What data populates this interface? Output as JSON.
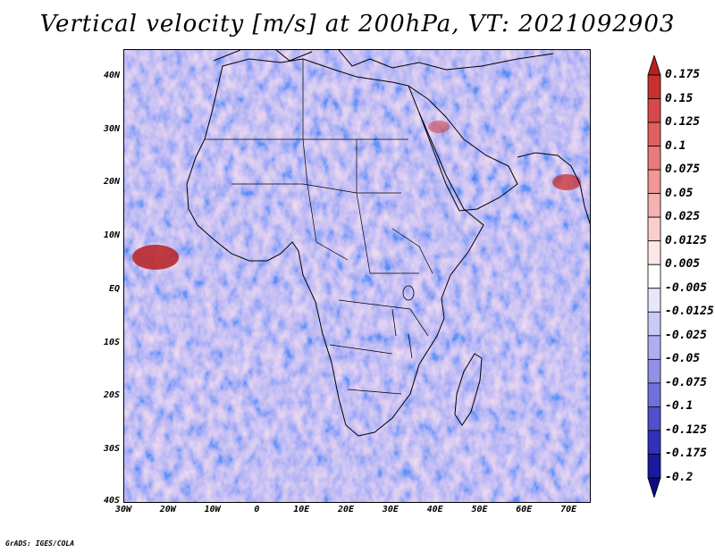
{
  "title": "Vertical velocity [m/s] at 200hPa, VT: 2021092903",
  "map": {
    "lat_labels": [
      "40N",
      "30N",
      "20N",
      "10N",
      "EQ",
      "10S",
      "20S",
      "30S",
      "40S"
    ],
    "lat_values": [
      40,
      30,
      20,
      10,
      0,
      -10,
      -20,
      -30,
      -40
    ],
    "lon_labels": [
      "30W",
      "20W",
      "10W",
      "0",
      "10E",
      "20E",
      "30E",
      "40E",
      "50E",
      "60E",
      "70E"
    ],
    "lon_values": [
      -30,
      -20,
      -10,
      0,
      10,
      20,
      30,
      40,
      50,
      60,
      70
    ],
    "extent": {
      "lon_min": -30,
      "lon_max": 75,
      "lat_min": -40,
      "lat_max": 45
    }
  },
  "colorbar": {
    "labels": [
      "0.175",
      "0.15",
      "0.125",
      "0.1",
      "0.075",
      "0.05",
      "0.025",
      "0.0125",
      "0.005",
      "-0.005",
      "-0.0125",
      "-0.025",
      "-0.05",
      "-0.075",
      "-0.1",
      "-0.125",
      "-0.175",
      "-0.2"
    ],
    "colors": [
      "#b82020",
      "#c83030",
      "#d84848",
      "#e06060",
      "#e87a7a",
      "#f09696",
      "#f4b2b2",
      "#f8cece",
      "#fce6e6",
      "#ffffff",
      "#e6e6fc",
      "#cacaf6",
      "#aeaef0",
      "#9090e6",
      "#7070dc",
      "#5050cc",
      "#3030b8",
      "#1a1aa0",
      "#0c0c80"
    ]
  },
  "credit": "GrADS: IGES/COLA"
}
